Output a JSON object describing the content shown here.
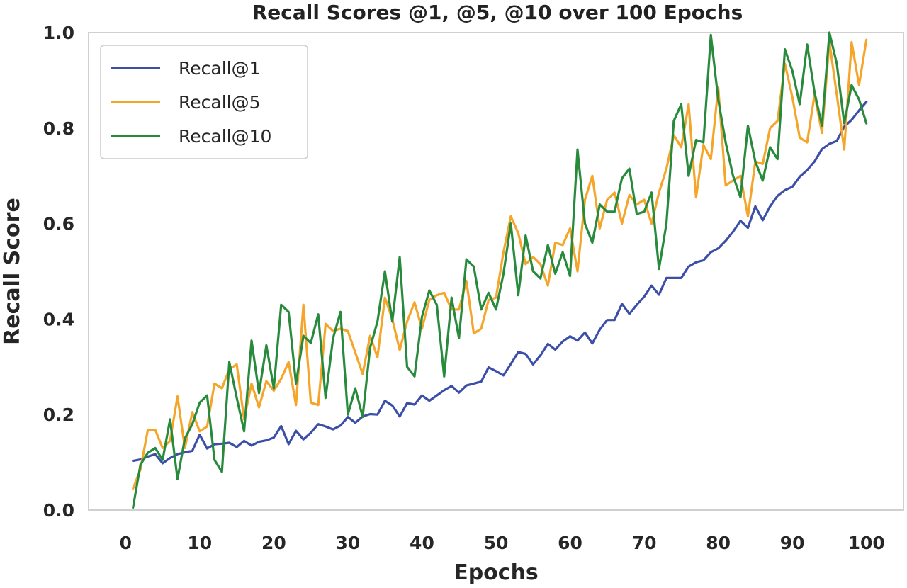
{
  "chart_data": {
    "type": "line",
    "title": "Recall Scores @1, @5, @10 over 100 Epochs",
    "xlabel": "Epochs",
    "ylabel": "Recall Score",
    "xlim": [
      -5.0,
      105.0
    ],
    "ylim": [
      0.0,
      1.0
    ],
    "xticks": [
      0,
      10,
      20,
      30,
      40,
      50,
      60,
      70,
      80,
      90,
      100
    ],
    "xtick_labels": [
      "0",
      "10",
      "20",
      "30",
      "40",
      "50",
      "60",
      "70",
      "80",
      "90",
      "100"
    ],
    "yticks": [
      0.0,
      0.2,
      0.4,
      0.6,
      0.8,
      1.0
    ],
    "ytick_labels": [
      "0.0",
      "0.2",
      "0.4",
      "0.6",
      "0.8",
      "1.0"
    ],
    "grid": false,
    "legend_position": "upper-left",
    "series": [
      {
        "name": "Recall@1",
        "color": "#3b4fa8",
        "x": [
          1,
          2,
          3,
          4,
          5,
          6,
          7,
          8,
          9,
          10,
          11,
          12,
          13,
          14,
          15,
          16,
          17,
          18,
          19,
          20,
          21,
          22,
          23,
          24,
          25,
          26,
          27,
          28,
          29,
          30,
          31,
          32,
          33,
          34,
          35,
          36,
          37,
          38,
          39,
          40,
          41,
          42,
          43,
          44,
          45,
          46,
          47,
          48,
          49,
          50,
          51,
          52,
          53,
          54,
          55,
          56,
          57,
          58,
          59,
          60,
          61,
          62,
          63,
          64,
          65,
          66,
          67,
          68,
          69,
          70,
          71,
          72,
          73,
          74,
          75,
          76,
          77,
          78,
          79,
          80,
          81,
          82,
          83,
          84,
          85,
          86,
          87,
          88,
          89,
          90,
          91,
          92,
          93,
          94,
          95,
          96,
          97,
          98,
          99,
          100
        ],
        "values": [
          0.103,
          0.106,
          0.112,
          0.117,
          0.098,
          0.109,
          0.117,
          0.121,
          0.124,
          0.158,
          0.129,
          0.138,
          0.139,
          0.141,
          0.132,
          0.145,
          0.135,
          0.143,
          0.146,
          0.152,
          0.176,
          0.138,
          0.166,
          0.148,
          0.162,
          0.18,
          0.175,
          0.169,
          0.177,
          0.195,
          0.183,
          0.196,
          0.201,
          0.2,
          0.229,
          0.219,
          0.196,
          0.224,
          0.221,
          0.24,
          0.229,
          0.24,
          0.251,
          0.26,
          0.246,
          0.261,
          0.265,
          0.269,
          0.299,
          0.291,
          0.282,
          0.306,
          0.331,
          0.327,
          0.305,
          0.324,
          0.348,
          0.336,
          0.353,
          0.364,
          0.355,
          0.372,
          0.349,
          0.378,
          0.398,
          0.398,
          0.432,
          0.411,
          0.43,
          0.447,
          0.47,
          0.451,
          0.486,
          0.486,
          0.486,
          0.51,
          0.519,
          0.523,
          0.54,
          0.548,
          0.564,
          0.583,
          0.606,
          0.591,
          0.636,
          0.607,
          0.636,
          0.658,
          0.67,
          0.677,
          0.698,
          0.712,
          0.73,
          0.756,
          0.767,
          0.773,
          0.803,
          0.817,
          0.837,
          0.855
        ]
      },
      {
        "name": "Recall@5",
        "color": "#f4a52a",
        "x": [
          1,
          2,
          3,
          4,
          5,
          6,
          7,
          8,
          9,
          10,
          11,
          12,
          13,
          14,
          15,
          16,
          17,
          18,
          19,
          20,
          21,
          22,
          23,
          24,
          25,
          26,
          27,
          28,
          29,
          30,
          31,
          32,
          33,
          34,
          35,
          36,
          37,
          38,
          39,
          40,
          41,
          42,
          43,
          44,
          45,
          46,
          47,
          48,
          49,
          50,
          51,
          52,
          53,
          54,
          55,
          56,
          57,
          58,
          59,
          60,
          61,
          62,
          63,
          64,
          65,
          66,
          67,
          68,
          69,
          70,
          71,
          72,
          73,
          74,
          75,
          76,
          77,
          78,
          79,
          80,
          81,
          82,
          83,
          84,
          85,
          86,
          87,
          88,
          89,
          90,
          91,
          92,
          93,
          94,
          95,
          96,
          97,
          98,
          99,
          100
        ],
        "values": [
          0.045,
          0.085,
          0.168,
          0.168,
          0.13,
          0.145,
          0.238,
          0.13,
          0.205,
          0.165,
          0.175,
          0.265,
          0.255,
          0.295,
          0.305,
          0.19,
          0.265,
          0.215,
          0.27,
          0.25,
          0.275,
          0.31,
          0.22,
          0.43,
          0.225,
          0.22,
          0.39,
          0.375,
          0.38,
          0.375,
          0.33,
          0.285,
          0.365,
          0.32,
          0.445,
          0.4,
          0.335,
          0.395,
          0.435,
          0.38,
          0.44,
          0.45,
          0.455,
          0.42,
          0.42,
          0.48,
          0.37,
          0.38,
          0.44,
          0.445,
          0.54,
          0.615,
          0.58,
          0.515,
          0.53,
          0.515,
          0.47,
          0.56,
          0.555,
          0.59,
          0.5,
          0.65,
          0.7,
          0.59,
          0.65,
          0.665,
          0.6,
          0.66,
          0.64,
          0.65,
          0.6,
          0.665,
          0.715,
          0.785,
          0.76,
          0.85,
          0.655,
          0.765,
          0.735,
          0.885,
          0.68,
          0.69,
          0.7,
          0.615,
          0.73,
          0.725,
          0.8,
          0.815,
          0.935,
          0.865,
          0.78,
          0.77,
          0.87,
          0.79,
          0.98,
          0.87,
          0.755,
          0.98,
          0.89,
          0.985
        ]
      },
      {
        "name": "Recall@10",
        "color": "#278a3c",
        "x": [
          1,
          2,
          3,
          4,
          5,
          6,
          7,
          8,
          9,
          10,
          11,
          12,
          13,
          14,
          15,
          16,
          17,
          18,
          19,
          20,
          21,
          22,
          23,
          24,
          25,
          26,
          27,
          28,
          29,
          30,
          31,
          32,
          33,
          34,
          35,
          36,
          37,
          38,
          39,
          40,
          41,
          42,
          43,
          44,
          45,
          46,
          47,
          48,
          49,
          50,
          51,
          52,
          53,
          54,
          55,
          56,
          57,
          58,
          59,
          60,
          61,
          62,
          63,
          64,
          65,
          66,
          67,
          68,
          69,
          70,
          71,
          72,
          73,
          74,
          75,
          76,
          77,
          78,
          79,
          80,
          81,
          82,
          83,
          84,
          85,
          86,
          87,
          88,
          89,
          90,
          91,
          92,
          93,
          94,
          95,
          96,
          97,
          98,
          99,
          100
        ],
        "values": [
          0.005,
          0.095,
          0.12,
          0.13,
          0.105,
          0.19,
          0.065,
          0.15,
          0.18,
          0.225,
          0.24,
          0.105,
          0.08,
          0.31,
          0.235,
          0.165,
          0.355,
          0.245,
          0.345,
          0.255,
          0.43,
          0.415,
          0.265,
          0.365,
          0.35,
          0.41,
          0.235,
          0.36,
          0.415,
          0.2,
          0.255,
          0.195,
          0.34,
          0.395,
          0.5,
          0.395,
          0.53,
          0.3,
          0.28,
          0.405,
          0.46,
          0.43,
          0.28,
          0.445,
          0.36,
          0.525,
          0.51,
          0.42,
          0.455,
          0.42,
          0.495,
          0.6,
          0.45,
          0.575,
          0.5,
          0.485,
          0.555,
          0.495,
          0.54,
          0.49,
          0.755,
          0.6,
          0.56,
          0.64,
          0.625,
          0.625,
          0.695,
          0.715,
          0.62,
          0.625,
          0.665,
          0.505,
          0.6,
          0.815,
          0.85,
          0.7,
          0.775,
          0.77,
          0.995,
          0.86,
          0.77,
          0.7,
          0.655,
          0.805,
          0.73,
          0.69,
          0.76,
          0.735,
          0.965,
          0.92,
          0.85,
          0.975,
          0.875,
          0.805,
          1.0,
          0.935,
          0.81,
          0.89,
          0.86,
          0.81
        ]
      }
    ]
  }
}
